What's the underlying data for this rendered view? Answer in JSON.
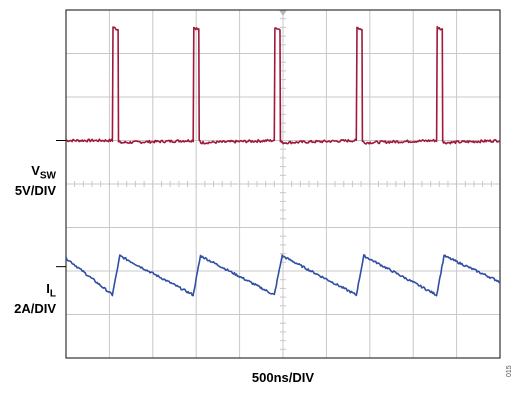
{
  "chart_data": {
    "type": "line",
    "grid": true,
    "x": {
      "label": "500ns/DIV",
      "unit_per_div_ns": 500,
      "divisions": 10,
      "range_ns": [
        0,
        5000
      ]
    },
    "y": {
      "divisions": 8,
      "range_div": [
        0,
        8
      ]
    },
    "series": [
      {
        "name": "V_SW",
        "scale": "5V/DIV",
        "color": "#a0183a",
        "baseline_div": 5.0,
        "level_div": [
          5.0,
          7.6
        ],
        "points_ns_div": [
          [
            0,
            5.0
          ],
          [
            535,
            5.0
          ],
          [
            542,
            7.6
          ],
          [
            600,
            7.55
          ],
          [
            605,
            5.0
          ],
          [
            625,
            4.95
          ],
          [
            1465,
            5.0
          ],
          [
            1472,
            7.6
          ],
          [
            1530,
            7.55
          ],
          [
            1535,
            5.0
          ],
          [
            1555,
            4.95
          ],
          [
            2400,
            5.0
          ],
          [
            2407,
            7.6
          ],
          [
            2465,
            7.55
          ],
          [
            2470,
            5.0
          ],
          [
            2490,
            4.95
          ],
          [
            3345,
            5.0
          ],
          [
            3352,
            7.6
          ],
          [
            3410,
            7.55
          ],
          [
            3415,
            5.0
          ],
          [
            3435,
            4.95
          ],
          [
            4270,
            5.0
          ],
          [
            4277,
            7.6
          ],
          [
            4335,
            7.55
          ],
          [
            4340,
            5.0
          ],
          [
            4360,
            4.95
          ],
          [
            5000,
            5.0
          ]
        ]
      },
      {
        "name": "I_L",
        "scale": "2A/DIV",
        "color": "#2f4fa5",
        "baseline_div": 2.1,
        "points_ns_div": [
          [
            0,
            2.3
          ],
          [
            535,
            1.45
          ],
          [
            620,
            2.35
          ],
          [
            1465,
            1.45
          ],
          [
            1550,
            2.35
          ],
          [
            2400,
            1.45
          ],
          [
            2490,
            2.35
          ],
          [
            3345,
            1.45
          ],
          [
            3430,
            2.35
          ],
          [
            4270,
            1.45
          ],
          [
            4355,
            2.35
          ],
          [
            5000,
            1.75
          ]
        ]
      }
    ],
    "channel_labels": [
      {
        "name": "V",
        "sub": "SW",
        "scale": "5V/DIV"
      },
      {
        "name": "I",
        "sub": "L",
        "scale": "2A/DIV"
      }
    ],
    "figure_id": "015"
  }
}
